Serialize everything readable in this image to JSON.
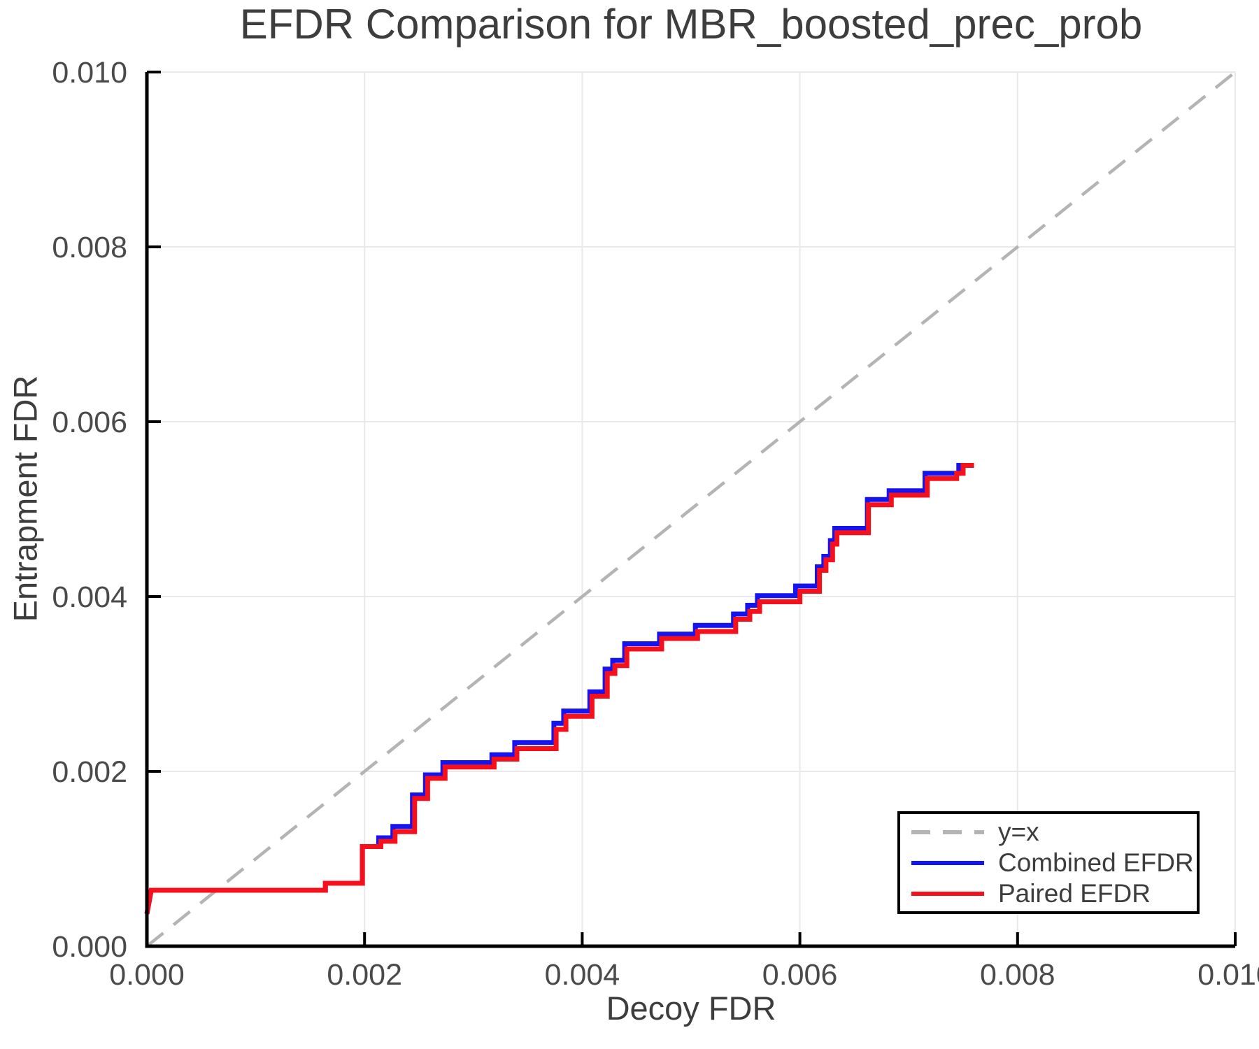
{
  "chart": {
    "title": "EFDR Comparison for MBR_boosted_prec_prob",
    "xlabel": "Decoy FDR",
    "ylabel": "Entrapment FDR"
  },
  "legend": {
    "items": [
      {
        "label": "y=x",
        "style": "dashed",
        "color": "#b4b4b4"
      },
      {
        "label": "Combined EFDR",
        "style": "solid",
        "color": "#1414f0"
      },
      {
        "label": "Paired EFDR",
        "style": "solid",
        "color": "#f5101c"
      }
    ]
  },
  "chart_data": {
    "type": "line",
    "title": "EFDR Comparison for MBR_boosted_prec_prob",
    "xlabel": "Decoy FDR",
    "ylabel": "Entrapment FDR",
    "xlim": [
      0.0,
      0.01
    ],
    "ylim": [
      0.0,
      0.01
    ],
    "x_ticks": [
      "0.000",
      "0.002",
      "0.004",
      "0.006",
      "0.008",
      "0.010"
    ],
    "y_ticks": [
      "0.000",
      "0.002",
      "0.004",
      "0.006",
      "0.008",
      "0.010"
    ],
    "grid": true,
    "grid_color": "#e9e9e9",
    "legend_position": "lower right",
    "reference_line": {
      "name": "y=x",
      "style": "dashed",
      "color": "#b4b4b4",
      "points": [
        [
          0.0,
          0.0
        ],
        [
          0.01,
          0.01
        ]
      ]
    },
    "series": [
      {
        "name": "Combined EFDR",
        "color": "#1414f0",
        "step": true,
        "points": [
          [
            0.0,
            0.00037
          ],
          [
            4e-05,
            0.00064
          ],
          [
            0.00164,
            0.00064
          ],
          [
            0.00164,
            0.00072
          ],
          [
            0.00198,
            0.00072
          ],
          [
            0.00198,
            0.00114
          ],
          [
            0.00213,
            0.00114
          ],
          [
            0.00213,
            0.00124
          ],
          [
            0.00226,
            0.00124
          ],
          [
            0.00226,
            0.00137
          ],
          [
            0.00244,
            0.00137
          ],
          [
            0.00244,
            0.00173
          ],
          [
            0.00256,
            0.00173
          ],
          [
            0.00256,
            0.00196
          ],
          [
            0.00272,
            0.00196
          ],
          [
            0.00272,
            0.0021
          ],
          [
            0.00317,
            0.0021
          ],
          [
            0.00317,
            0.00219
          ],
          [
            0.00338,
            0.00219
          ],
          [
            0.00338,
            0.00233
          ],
          [
            0.00374,
            0.00233
          ],
          [
            0.00374,
            0.00255
          ],
          [
            0.00383,
            0.00255
          ],
          [
            0.00383,
            0.00269
          ],
          [
            0.00407,
            0.00269
          ],
          [
            0.00407,
            0.00291
          ],
          [
            0.00421,
            0.00291
          ],
          [
            0.00421,
            0.00317
          ],
          [
            0.00428,
            0.00317
          ],
          [
            0.00428,
            0.00327
          ],
          [
            0.00439,
            0.00327
          ],
          [
            0.00439,
            0.00346
          ],
          [
            0.00471,
            0.00346
          ],
          [
            0.00471,
            0.00357
          ],
          [
            0.00504,
            0.00357
          ],
          [
            0.00504,
            0.00367
          ],
          [
            0.00539,
            0.00367
          ],
          [
            0.00539,
            0.0038
          ],
          [
            0.00552,
            0.0038
          ],
          [
            0.00552,
            0.0039
          ],
          [
            0.00561,
            0.0039
          ],
          [
            0.00561,
            0.00401
          ],
          [
            0.00596,
            0.00401
          ],
          [
            0.00596,
            0.00412
          ],
          [
            0.00616,
            0.00412
          ],
          [
            0.00616,
            0.00434
          ],
          [
            0.00622,
            0.00434
          ],
          [
            0.00622,
            0.00446
          ],
          [
            0.00628,
            0.00446
          ],
          [
            0.00628,
            0.00464
          ],
          [
            0.00632,
            0.00464
          ],
          [
            0.00632,
            0.00478
          ],
          [
            0.00662,
            0.00478
          ],
          [
            0.00662,
            0.00511
          ],
          [
            0.00682,
            0.00511
          ],
          [
            0.00682,
            0.00521
          ],
          [
            0.00715,
            0.00521
          ],
          [
            0.00715,
            0.00541
          ],
          [
            0.00746,
            0.00541
          ],
          [
            0.00746,
            0.0055
          ],
          [
            0.00755,
            0.0055
          ]
        ]
      },
      {
        "name": "Paired EFDR",
        "color": "#f5101c",
        "step": true,
        "points": [
          [
            0.0,
            0.00037
          ],
          [
            4e-05,
            0.00064
          ],
          [
            0.00164,
            0.00064
          ],
          [
            0.00164,
            0.00072
          ],
          [
            0.00198,
            0.00072
          ],
          [
            0.00198,
            0.00114
          ],
          [
            0.00215,
            0.00114
          ],
          [
            0.00215,
            0.0012
          ],
          [
            0.00228,
            0.0012
          ],
          [
            0.00228,
            0.00131
          ],
          [
            0.00246,
            0.00131
          ],
          [
            0.00246,
            0.00169
          ],
          [
            0.00258,
            0.00169
          ],
          [
            0.00258,
            0.00192
          ],
          [
            0.00274,
            0.00192
          ],
          [
            0.00274,
            0.00205
          ],
          [
            0.00319,
            0.00205
          ],
          [
            0.00319,
            0.00214
          ],
          [
            0.0034,
            0.00214
          ],
          [
            0.0034,
            0.00226
          ],
          [
            0.00376,
            0.00226
          ],
          [
            0.00376,
            0.00248
          ],
          [
            0.00385,
            0.00248
          ],
          [
            0.00385,
            0.00263
          ],
          [
            0.00409,
            0.00263
          ],
          [
            0.00409,
            0.00286
          ],
          [
            0.00423,
            0.00286
          ],
          [
            0.00423,
            0.00312
          ],
          [
            0.0043,
            0.00312
          ],
          [
            0.0043,
            0.00321
          ],
          [
            0.00441,
            0.00321
          ],
          [
            0.00441,
            0.0034
          ],
          [
            0.00473,
            0.0034
          ],
          [
            0.00473,
            0.00352
          ],
          [
            0.00506,
            0.00352
          ],
          [
            0.00506,
            0.0036
          ],
          [
            0.00541,
            0.0036
          ],
          [
            0.00541,
            0.00374
          ],
          [
            0.00554,
            0.00374
          ],
          [
            0.00554,
            0.00383
          ],
          [
            0.00563,
            0.00383
          ],
          [
            0.00563,
            0.00394
          ],
          [
            0.006,
            0.00394
          ],
          [
            0.006,
            0.00406
          ],
          [
            0.00618,
            0.00406
          ],
          [
            0.00618,
            0.0043
          ],
          [
            0.00624,
            0.0043
          ],
          [
            0.00624,
            0.00442
          ],
          [
            0.0063,
            0.00442
          ],
          [
            0.0063,
            0.0046
          ],
          [
            0.00634,
            0.0046
          ],
          [
            0.00634,
            0.00473
          ],
          [
            0.00663,
            0.00473
          ],
          [
            0.00663,
            0.00505
          ],
          [
            0.00684,
            0.00505
          ],
          [
            0.00684,
            0.00516
          ],
          [
            0.00717,
            0.00516
          ],
          [
            0.00717,
            0.00535
          ],
          [
            0.00744,
            0.00535
          ],
          [
            0.00744,
            0.00541
          ],
          [
            0.0075,
            0.00541
          ],
          [
            0.0075,
            0.0055
          ],
          [
            0.0076,
            0.0055
          ]
        ]
      }
    ]
  }
}
